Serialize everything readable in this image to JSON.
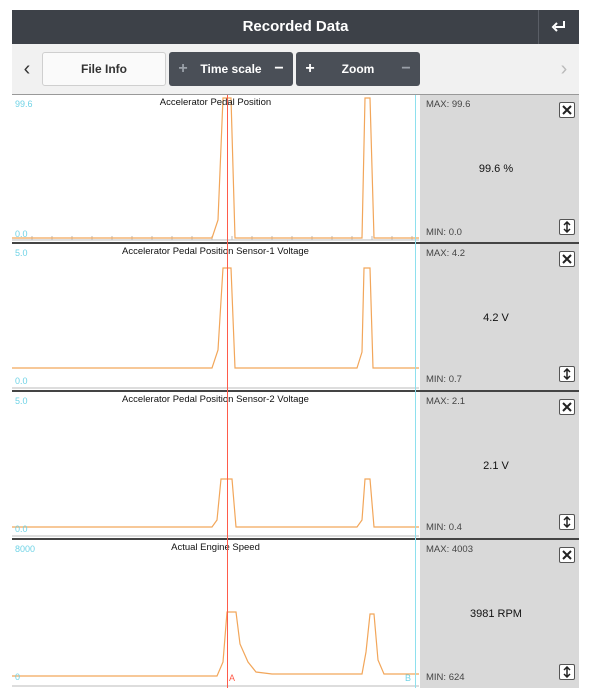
{
  "header": {
    "title": "Recorded Data"
  },
  "toolbar": {
    "file_info": "File Info",
    "time_scale": "Time scale",
    "zoom": "Zoom",
    "plus": "+",
    "minus": "−",
    "prev": "‹",
    "next": "›"
  },
  "cursors": {
    "a": "A",
    "b": "B"
  },
  "panels": [
    {
      "title": "Accelerator Pedal Position",
      "ymax": "99.6",
      "ymin": "0.0",
      "max": "MAX: 99.6",
      "min": "MIN: 0.0",
      "value": "99.6 %"
    },
    {
      "title": "Accelerator Pedal Position Sensor-1 Voltage",
      "ymax": "5.0",
      "ymin": "0.0",
      "max": "MAX: 4.2",
      "min": "MIN: 0.7",
      "value": "4.2 V"
    },
    {
      "title": "Accelerator Pedal Position Sensor-2 Voltage",
      "ymax": "5.0",
      "ymin": "0.0",
      "max": "MAX: 2.1",
      "min": "MIN: 0.4",
      "value": "2.1 V"
    },
    {
      "title": "Actual Engine Speed",
      "ymax": "8000",
      "ymin": "0",
      "max": "MAX: 4003",
      "min": "MIN: 624",
      "value": "3981 RPM"
    }
  ],
  "colors": {
    "trace": "#f2a65a",
    "cursor_a": "#ff5b4a",
    "axis_label": "#6fd3e6",
    "header_bg": "#3d4148"
  },
  "icons": {
    "back": "return-arrow-icon",
    "close": "close-icon",
    "scale": "vertical-resize-icon"
  }
}
